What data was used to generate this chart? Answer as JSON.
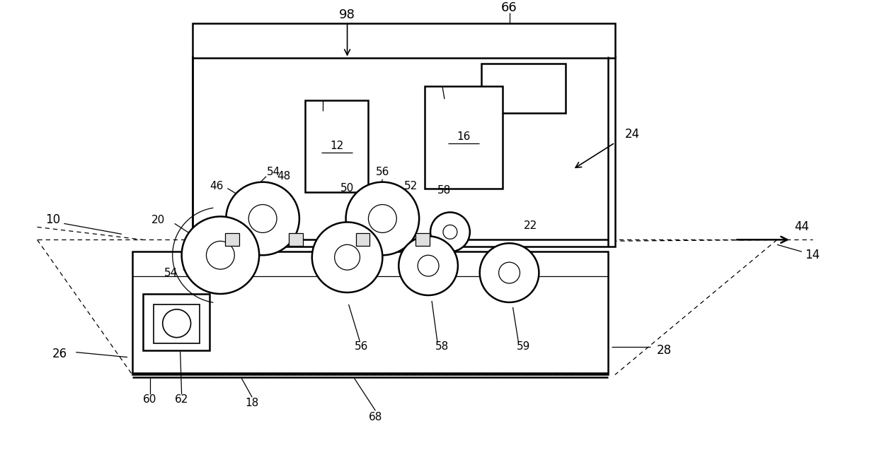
{
  "bg_color": "#ffffff",
  "line_color": "#000000",
  "fig_width": 12.39,
  "fig_height": 6.37,
  "dpi": 100
}
